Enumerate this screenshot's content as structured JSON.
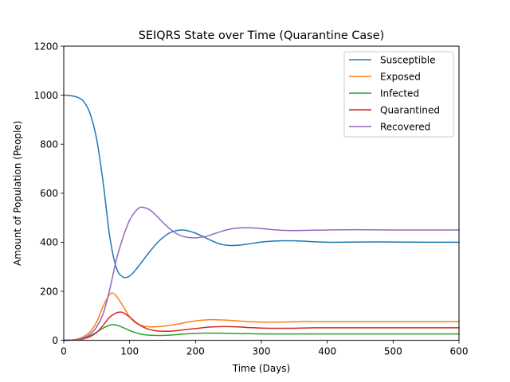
{
  "chart_data": {
    "type": "line",
    "title": "SEIQRS State over Time (Quarantine Case)",
    "xlabel": "Time (Days)",
    "ylabel": "Amount of Population (People)",
    "xlim": [
      0,
      600
    ],
    "ylim": [
      0,
      1200
    ],
    "xticks": [
      0,
      100,
      200,
      300,
      400,
      500,
      600
    ],
    "yticks": [
      0,
      200,
      400,
      600,
      800,
      1000,
      1200
    ],
    "grid": false,
    "legend_position": "top-right",
    "series": [
      {
        "name": "Susceptible",
        "color": "#1f77b4",
        "points": [
          [
            0,
            1000
          ],
          [
            10,
            998
          ],
          [
            20,
            992
          ],
          [
            30,
            975
          ],
          [
            40,
            925
          ],
          [
            50,
            820
          ],
          [
            60,
            640
          ],
          [
            70,
            420
          ],
          [
            80,
            295
          ],
          [
            90,
            258
          ],
          [
            100,
            262
          ],
          [
            110,
            290
          ],
          [
            120,
            325
          ],
          [
            130,
            360
          ],
          [
            140,
            392
          ],
          [
            150,
            418
          ],
          [
            160,
            437
          ],
          [
            170,
            447
          ],
          [
            180,
            450
          ],
          [
            190,
            446
          ],
          [
            200,
            437
          ],
          [
            210,
            425
          ],
          [
            220,
            412
          ],
          [
            230,
            400
          ],
          [
            240,
            391
          ],
          [
            250,
            387
          ],
          [
            260,
            387
          ],
          [
            270,
            389
          ],
          [
            280,
            393
          ],
          [
            290,
            397
          ],
          [
            300,
            401
          ],
          [
            320,
            405
          ],
          [
            340,
            406
          ],
          [
            360,
            405
          ],
          [
            380,
            402
          ],
          [
            400,
            400
          ],
          [
            420,
            400
          ],
          [
            450,
            401
          ],
          [
            500,
            401
          ],
          [
            550,
            400
          ],
          [
            600,
            400
          ]
        ]
      },
      {
        "name": "Exposed",
        "color": "#ff7f0e",
        "points": [
          [
            0,
            0
          ],
          [
            10,
            1
          ],
          [
            20,
            5
          ],
          [
            30,
            15
          ],
          [
            40,
            35
          ],
          [
            50,
            75
          ],
          [
            60,
            140
          ],
          [
            70,
            188
          ],
          [
            75,
            192
          ],
          [
            80,
            180
          ],
          [
            90,
            140
          ],
          [
            100,
            95
          ],
          [
            110,
            70
          ],
          [
            120,
            59
          ],
          [
            130,
            55
          ],
          [
            140,
            55
          ],
          [
            150,
            57
          ],
          [
            160,
            61
          ],
          [
            170,
            65
          ],
          [
            180,
            70
          ],
          [
            190,
            75
          ],
          [
            200,
            79
          ],
          [
            210,
            82
          ],
          [
            220,
            84
          ],
          [
            230,
            84
          ],
          [
            240,
            83
          ],
          [
            250,
            82
          ],
          [
            260,
            80
          ],
          [
            270,
            78
          ],
          [
            280,
            76
          ],
          [
            290,
            75
          ],
          [
            300,
            74
          ],
          [
            320,
            74
          ],
          [
            340,
            75
          ],
          [
            360,
            76
          ],
          [
            380,
            76
          ],
          [
            400,
            76
          ],
          [
            450,
            76
          ],
          [
            500,
            76
          ],
          [
            550,
            76
          ],
          [
            600,
            76
          ]
        ]
      },
      {
        "name": "Infected",
        "color": "#2ca02c",
        "points": [
          [
            0,
            0
          ],
          [
            10,
            1
          ],
          [
            20,
            3
          ],
          [
            30,
            8
          ],
          [
            40,
            18
          ],
          [
            50,
            33
          ],
          [
            60,
            50
          ],
          [
            70,
            62
          ],
          [
            75,
            64
          ],
          [
            80,
            62
          ],
          [
            90,
            52
          ],
          [
            100,
            40
          ],
          [
            110,
            30
          ],
          [
            120,
            24
          ],
          [
            130,
            21
          ],
          [
            140,
            20
          ],
          [
            150,
            20
          ],
          [
            160,
            21
          ],
          [
            170,
            23
          ],
          [
            180,
            25
          ],
          [
            190,
            27
          ],
          [
            200,
            28
          ],
          [
            210,
            29
          ],
          [
            220,
            29
          ],
          [
            230,
            29
          ],
          [
            240,
            29
          ],
          [
            250,
            28
          ],
          [
            260,
            28
          ],
          [
            270,
            27
          ],
          [
            280,
            27
          ],
          [
            300,
            26
          ],
          [
            350,
            26
          ],
          [
            400,
            26
          ],
          [
            450,
            26
          ],
          [
            500,
            26
          ],
          [
            550,
            26
          ],
          [
            600,
            26
          ]
        ]
      },
      {
        "name": "Quarantined",
        "color": "#d62728",
        "points": [
          [
            0,
            0
          ],
          [
            10,
            1
          ],
          [
            20,
            2
          ],
          [
            30,
            6
          ],
          [
            40,
            15
          ],
          [
            50,
            32
          ],
          [
            60,
            62
          ],
          [
            70,
            95
          ],
          [
            80,
            112
          ],
          [
            85,
            115
          ],
          [
            90,
            113
          ],
          [
            100,
            95
          ],
          [
            110,
            72
          ],
          [
            120,
            55
          ],
          [
            130,
            44
          ],
          [
            140,
            39
          ],
          [
            150,
            37
          ],
          [
            160,
            37
          ],
          [
            170,
            39
          ],
          [
            180,
            42
          ],
          [
            190,
            45
          ],
          [
            200,
            48
          ],
          [
            210,
            51
          ],
          [
            220,
            54
          ],
          [
            230,
            55
          ],
          [
            240,
            56
          ],
          [
            250,
            56
          ],
          [
            260,
            55
          ],
          [
            270,
            54
          ],
          [
            280,
            52
          ],
          [
            290,
            51
          ],
          [
            300,
            50
          ],
          [
            320,
            49
          ],
          [
            340,
            49
          ],
          [
            360,
            50
          ],
          [
            380,
            51
          ],
          [
            400,
            51
          ],
          [
            450,
            51
          ],
          [
            500,
            51
          ],
          [
            550,
            51
          ],
          [
            600,
            51
          ]
        ]
      },
      {
        "name": "Recovered",
        "color": "#9467bd",
        "points": [
          [
            0,
            0
          ],
          [
            10,
            1
          ],
          [
            20,
            3
          ],
          [
            30,
            10
          ],
          [
            40,
            25
          ],
          [
            50,
            55
          ],
          [
            60,
            110
          ],
          [
            70,
            210
          ],
          [
            80,
            330
          ],
          [
            90,
            420
          ],
          [
            100,
            490
          ],
          [
            110,
            530
          ],
          [
            115,
            541
          ],
          [
            120,
            543
          ],
          [
            130,
            533
          ],
          [
            140,
            510
          ],
          [
            150,
            482
          ],
          [
            160,
            457
          ],
          [
            170,
            437
          ],
          [
            180,
            425
          ],
          [
            190,
            419
          ],
          [
            200,
            418
          ],
          [
            210,
            421
          ],
          [
            220,
            427
          ],
          [
            230,
            436
          ],
          [
            240,
            445
          ],
          [
            250,
            452
          ],
          [
            260,
            457
          ],
          [
            270,
            459
          ],
          [
            280,
            459
          ],
          [
            290,
            458
          ],
          [
            300,
            456
          ],
          [
            320,
            451
          ],
          [
            340,
            448
          ],
          [
            360,
            448
          ],
          [
            380,
            449
          ],
          [
            400,
            450
          ],
          [
            430,
            451
          ],
          [
            460,
            451
          ],
          [
            500,
            450
          ],
          [
            550,
            450
          ],
          [
            600,
            450
          ]
        ]
      }
    ]
  }
}
